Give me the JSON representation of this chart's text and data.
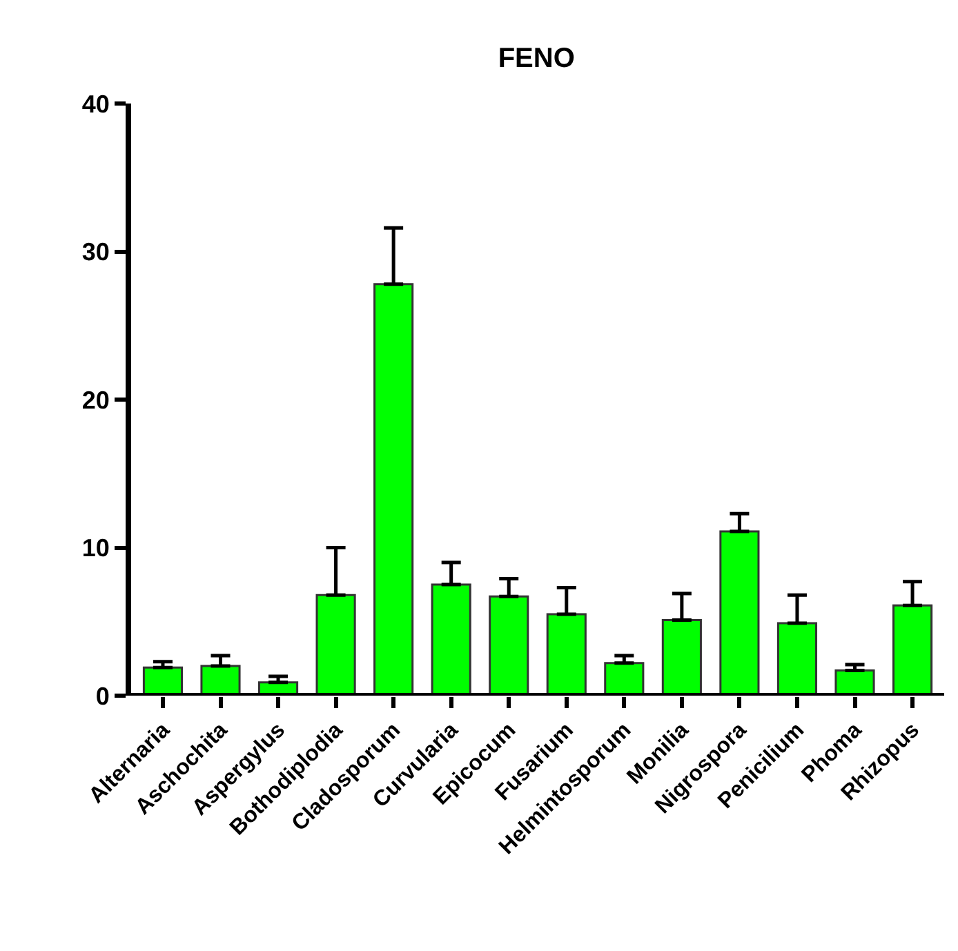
{
  "chart_data": {
    "type": "bar",
    "title": "FENO",
    "categories": [
      "Alternaria",
      "Aschochita",
      "Aspergylus",
      "Bothodiplodia",
      "Cladosporum",
      "Curvularia",
      "Epicocum",
      "Fusarium",
      "Helmintosporum",
      "Monilia",
      "Nigrospora",
      "Penicilium",
      "Phoma",
      "Rhizopus"
    ],
    "series": [
      {
        "color": "#00ff00",
        "values": [
          1.9,
          2.0,
          0.9,
          6.8,
          27.8,
          7.5,
          6.7,
          5.5,
          2.2,
          5.1,
          11.1,
          4.9,
          1.7,
          6.1
        ],
        "errors": [
          [
            1.9,
            2.3
          ],
          [
            2.0,
            2.7
          ],
          [
            0.9,
            1.3
          ],
          [
            6.8,
            10.0
          ],
          [
            27.8,
            31.6
          ],
          [
            7.5,
            9.0
          ],
          [
            6.7,
            7.9
          ],
          [
            5.5,
            7.3
          ],
          [
            2.2,
            2.7
          ],
          [
            5.1,
            6.9
          ],
          [
            11.1,
            12.3
          ],
          [
            4.9,
            6.8
          ],
          [
            1.7,
            2.1
          ],
          [
            6.1,
            7.7
          ]
        ]
      }
    ],
    "ylim": [
      0,
      40
    ],
    "yticks": [
      0,
      10,
      20,
      30,
      40
    ]
  }
}
